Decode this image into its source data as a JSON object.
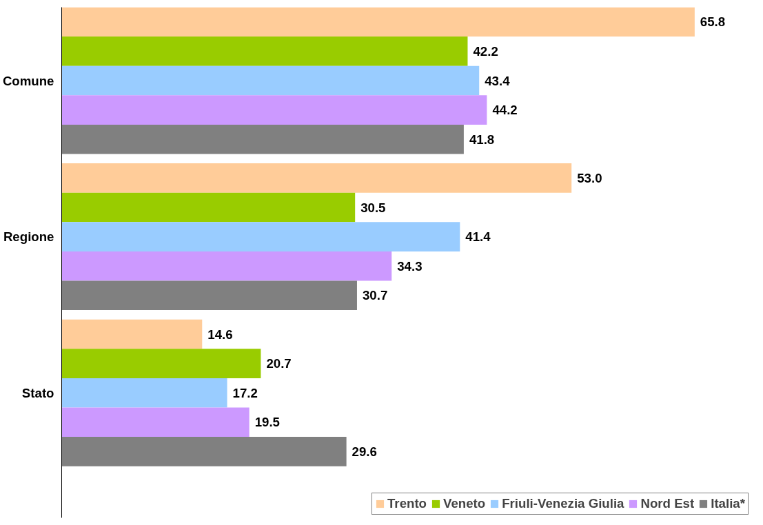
{
  "chart_data": {
    "type": "bar",
    "orientation": "horizontal",
    "categories": [
      "Comune",
      "Regione",
      "Stato"
    ],
    "series": [
      {
        "name": "Trento",
        "color": "#ffcc99",
        "values": [
          65.8,
          53.0,
          14.6
        ],
        "value_labels": [
          "65.8",
          "53.0",
          "14.6"
        ]
      },
      {
        "name": "Veneto",
        "color": "#99cc00",
        "values": [
          42.2,
          30.5,
          20.7
        ],
        "value_labels": [
          "42.2",
          "30.5",
          "20.7"
        ]
      },
      {
        "name": "Friuli-Venezia Giulia",
        "color": "#99ccff",
        "values": [
          43.4,
          41.4,
          17.2
        ],
        "value_labels": [
          "43.4",
          "41.4",
          "17.2"
        ]
      },
      {
        "name": "Nord Est",
        "color": "#cc99ff",
        "values": [
          44.2,
          34.3,
          19.5
        ],
        "value_labels": [
          "44.2",
          "34.3",
          "19.5"
        ]
      },
      {
        "name": "Italia*",
        "color": "#808080",
        "values": [
          41.8,
          30.7,
          29.6
        ],
        "value_labels": [
          "41.8",
          "30.7",
          "29.6"
        ]
      }
    ],
    "legend": "bottom right",
    "grid": false,
    "tick_labels": "y"
  }
}
